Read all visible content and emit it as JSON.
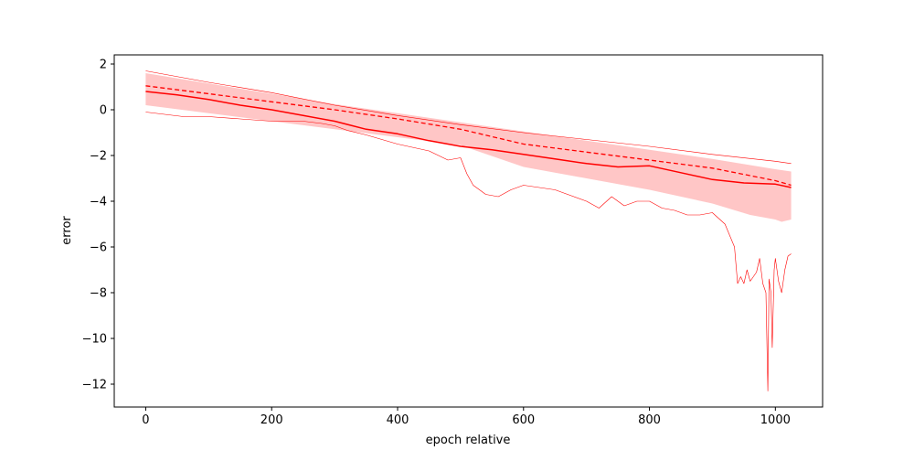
{
  "chart_data": {
    "type": "line",
    "title": "",
    "xlabel": "epoch relative",
    "ylabel": "error",
    "xlim": [
      -50,
      1075
    ],
    "ylim": [
      -13,
      2.4
    ],
    "xticks": [
      0,
      200,
      400,
      600,
      800,
      1000
    ],
    "yticks": [
      2,
      0,
      -2,
      -4,
      -6,
      -8,
      -10,
      -12
    ],
    "grid": false,
    "legend": "none",
    "colors": {
      "line": "#ff0000",
      "band": "#ffc6c6"
    },
    "series": [
      {
        "role": "median",
        "style": "solid",
        "x": [
          0,
          50,
          100,
          150,
          200,
          250,
          300,
          350,
          400,
          450,
          500,
          550,
          600,
          650,
          700,
          750,
          800,
          850,
          900,
          950,
          1000,
          1025
        ],
        "y": [
          0.8,
          0.65,
          0.45,
          0.2,
          0.0,
          -0.25,
          -0.5,
          -0.85,
          -1.05,
          -1.35,
          -1.6,
          -1.75,
          -1.95,
          -2.15,
          -2.35,
          -2.5,
          -2.45,
          -2.75,
          -3.05,
          -3.2,
          -3.25,
          -3.4
        ]
      },
      {
        "role": "mean",
        "style": "dashed",
        "x": [
          0,
          100,
          200,
          300,
          400,
          500,
          600,
          700,
          800,
          900,
          1000,
          1025
        ],
        "y": [
          1.05,
          0.7,
          0.35,
          0.0,
          -0.4,
          -0.85,
          -1.5,
          -1.85,
          -2.2,
          -2.55,
          -3.1,
          -3.3
        ]
      },
      {
        "role": "max",
        "style": "thin",
        "x": [
          0,
          100,
          200,
          300,
          400,
          500,
          600,
          700,
          800,
          900,
          1000,
          1025
        ],
        "y": [
          1.7,
          1.2,
          0.75,
          0.2,
          -0.25,
          -0.65,
          -1.0,
          -1.3,
          -1.6,
          -1.95,
          -2.25,
          -2.35
        ]
      },
      {
        "role": "min",
        "style": "thin",
        "x": [
          0,
          30,
          60,
          100,
          150,
          200,
          250,
          280,
          300,
          320,
          350,
          400,
          450,
          480,
          500,
          510,
          520,
          530,
          540,
          560,
          580,
          600,
          650,
          700,
          720,
          740,
          760,
          780,
          800,
          820,
          840,
          860,
          880,
          900,
          920,
          935,
          940,
          945,
          950,
          955,
          960,
          970,
          975,
          980,
          985,
          988,
          990,
          993,
          995,
          998,
          1000,
          1005,
          1010,
          1015,
          1020,
          1025
        ],
        "y": [
          -0.1,
          -0.2,
          -0.3,
          -0.3,
          -0.4,
          -0.5,
          -0.5,
          -0.6,
          -0.7,
          -0.9,
          -1.1,
          -1.5,
          -1.8,
          -2.2,
          -2.1,
          -2.8,
          -3.3,
          -3.5,
          -3.7,
          -3.8,
          -3.5,
          -3.3,
          -3.5,
          -4.0,
          -4.3,
          -3.8,
          -4.2,
          -4.0,
          -4.0,
          -4.3,
          -4.4,
          -4.6,
          -4.6,
          -4.5,
          -5.0,
          -6.0,
          -7.6,
          -7.3,
          -7.6,
          -7.0,
          -7.5,
          -7.1,
          -6.5,
          -7.6,
          -8.0,
          -12.3,
          -7.4,
          -8.0,
          -10.4,
          -7.0,
          -6.5,
          -7.5,
          -8.0,
          -7.0,
          -6.4,
          -6.3
        ]
      },
      {
        "role": "band_upper",
        "style": "fill",
        "x": [
          0,
          100,
          200,
          300,
          400,
          500,
          600,
          700,
          800,
          900,
          1000,
          1025
        ],
        "y": [
          1.6,
          1.15,
          0.7,
          0.25,
          -0.15,
          -0.55,
          -0.95,
          -1.35,
          -1.75,
          -2.15,
          -2.6,
          -2.7
        ]
      },
      {
        "role": "band_lower",
        "style": "fill",
        "x": [
          0,
          100,
          200,
          300,
          400,
          500,
          600,
          700,
          800,
          900,
          960,
          1000,
          1010,
          1025
        ],
        "y": [
          0.2,
          -0.15,
          -0.5,
          -0.85,
          -1.2,
          -1.55,
          -2.5,
          -3.0,
          -3.5,
          -4.1,
          -4.6,
          -4.8,
          -4.9,
          -4.8
        ]
      }
    ]
  }
}
